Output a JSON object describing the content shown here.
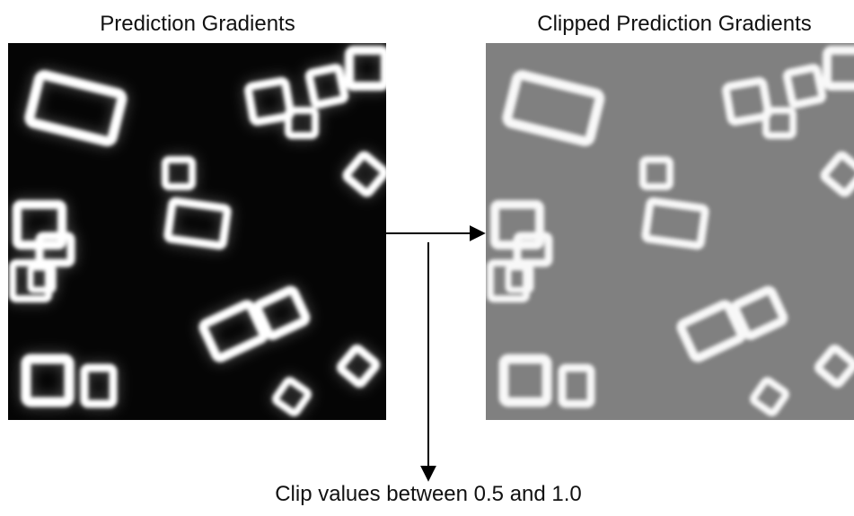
{
  "panels": [
    {
      "title": "Prediction Gradients"
    },
    {
      "title": "Clipped Prediction Gradients"
    }
  ],
  "caption": "Clip values between 0.5 and 1.0"
}
